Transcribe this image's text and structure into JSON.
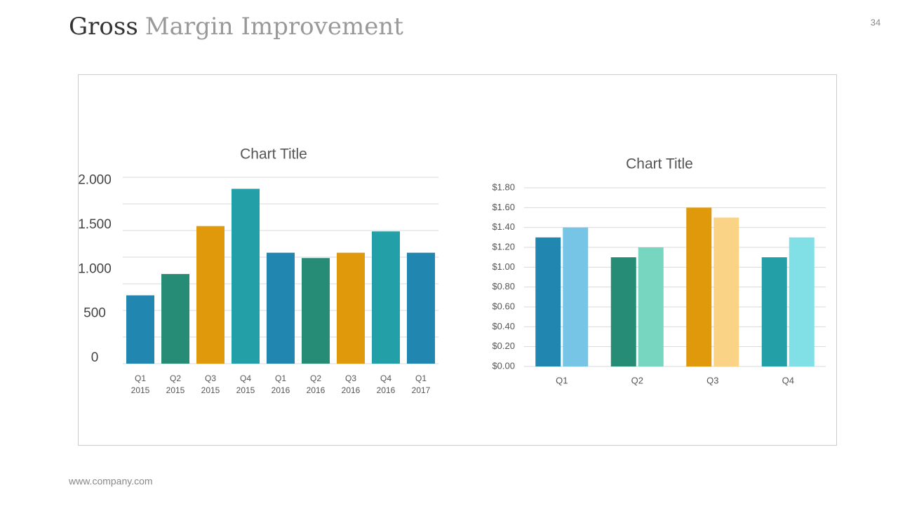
{
  "header": {
    "title_first": "Gross",
    "title_rest": "Margin Improvement",
    "page_number": "34"
  },
  "footer": "www.company.com",
  "chart_data": [
    {
      "type": "bar",
      "title": "Chart Title",
      "categories": [
        [
          "Q1",
          "2015"
        ],
        [
          "Q2",
          "2015"
        ],
        [
          "Q3",
          "2015"
        ],
        [
          "Q4",
          "2015"
        ],
        [
          "Q1",
          "2016"
        ],
        [
          "Q2",
          "2016"
        ],
        [
          "Q3",
          "2016"
        ],
        [
          "Q4",
          "2016"
        ],
        [
          "Q1",
          "2017"
        ]
      ],
      "values": [
        770,
        1010,
        1550,
        1970,
        1250,
        1190,
        1250,
        1490,
        1250
      ],
      "colors": [
        "#2287b0",
        "#268c75",
        "#e0990b",
        "#239fa7",
        "#2287b0",
        "#268c75",
        "#e0990b",
        "#239fa7",
        "#2287b0"
      ],
      "ylim": [
        0,
        2100
      ],
      "yticks": [
        {
          "value": 0,
          "label": "0"
        },
        {
          "value": 500,
          "label": "500"
        },
        {
          "value": 1000,
          "label": "1.000"
        },
        {
          "value": 1500,
          "label": "1.500"
        },
        {
          "value": 2000,
          "label": "2.000"
        }
      ],
      "ygrid": [
        0,
        300,
        600,
        900,
        1200,
        1500,
        1800,
        2100
      ],
      "grid": true
    },
    {
      "type": "grouped_bar",
      "title": "Chart Title",
      "categories": [
        "Q1",
        "Q2",
        "Q3",
        "Q4"
      ],
      "series": [
        {
          "colors": [
            "#2287b0",
            "#268c75",
            "#e0990b",
            "#239fa7"
          ],
          "values": [
            1.3,
            1.1,
            1.6,
            1.1
          ]
        },
        {
          "colors": [
            "#77c5e6",
            "#76d6c0",
            "#fad386",
            "#81dfe6"
          ],
          "values": [
            1.4,
            1.2,
            1.5,
            1.3
          ]
        }
      ],
      "ylim": [
        0,
        1.8
      ],
      "yticks": [
        {
          "value": 0,
          "label": "$0.00"
        },
        {
          "value": 0.2,
          "label": "$0.20"
        },
        {
          "value": 0.4,
          "label": "$0.40"
        },
        {
          "value": 0.6,
          "label": "$0.60"
        },
        {
          "value": 0.8,
          "label": "$0.80"
        },
        {
          "value": 1.0,
          "label": "$1.00"
        },
        {
          "value": 1.2,
          "label": "$1.20"
        },
        {
          "value": 1.4,
          "label": "$1.40"
        },
        {
          "value": 1.6,
          "label": "$1.60"
        },
        {
          "value": 1.8,
          "label": "$1.80"
        }
      ],
      "grid": true
    }
  ]
}
